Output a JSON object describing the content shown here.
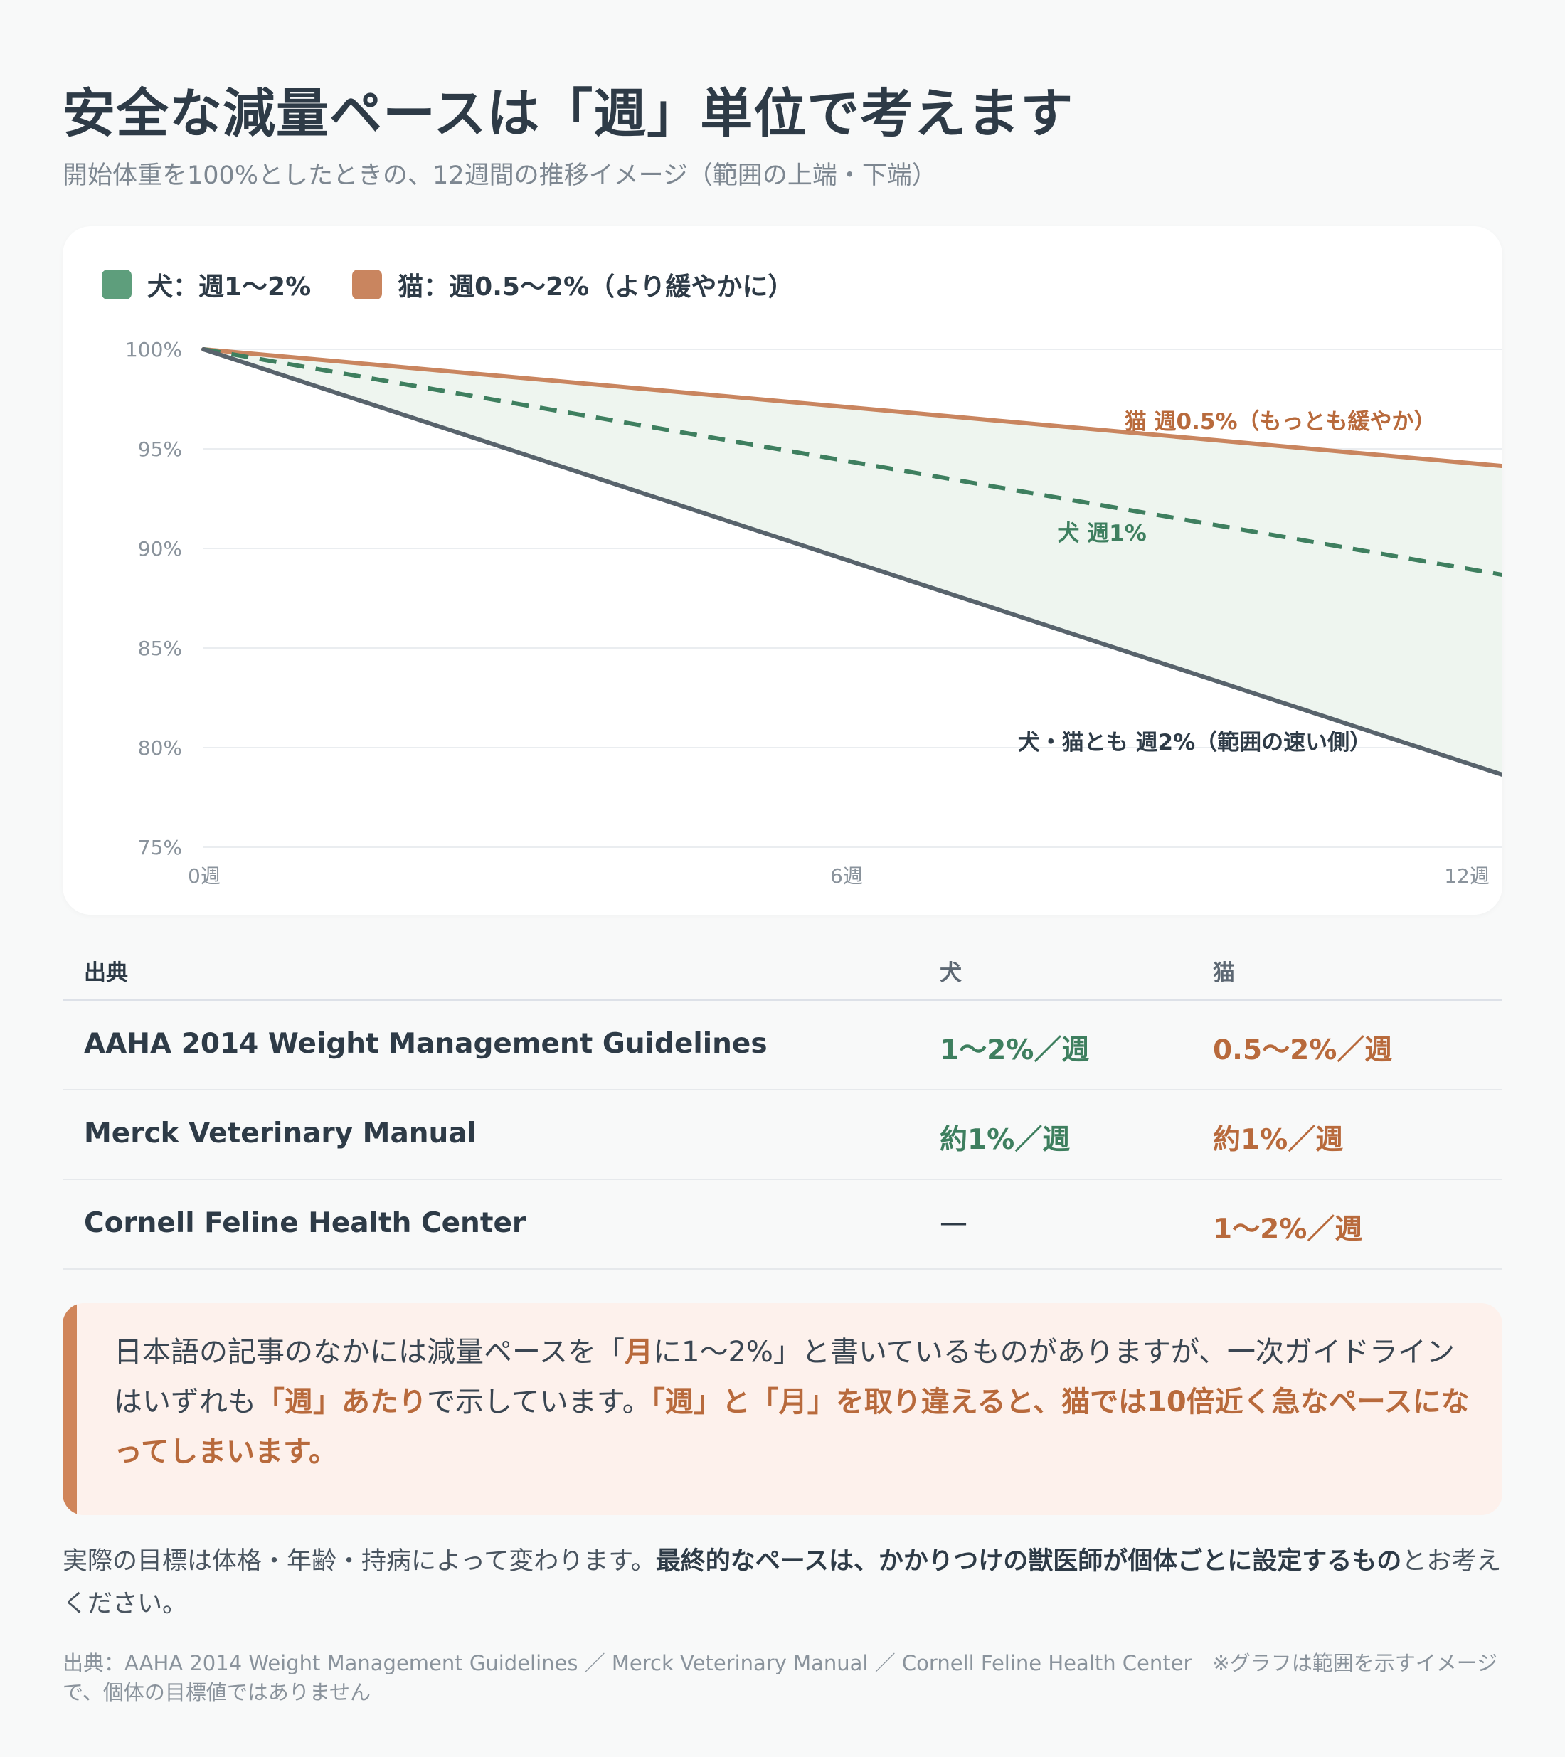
{
  "title": "安全な減量ペースは「週」単位で考えます",
  "subtitle": "開始体重を100%としたときの、12週間の推移イメージ（範囲の上端・下端）",
  "colors": {
    "dog": "#5e9e7c",
    "dog_text": "#3e7f5f",
    "cat": "#c9855f",
    "cat_text": "#b86a3c",
    "fast": "#58636c",
    "band_fill": "#eef5ef",
    "grid": "#eaedf0"
  },
  "chart_data": {
    "type": "line",
    "legend": [
      {
        "label": "犬：週1〜2%",
        "color": "#5e9e7c"
      },
      {
        "label": "猫：週0.5〜2%（より緩やかに）",
        "color": "#c9855f"
      }
    ],
    "x_ticks": [
      {
        "value": 0,
        "label": "0週"
      },
      {
        "value": 6,
        "label": "6週"
      },
      {
        "value": 12,
        "label": "12週"
      }
    ],
    "y_ticks": [
      {
        "value": 100,
        "label": "100%"
      },
      {
        "value": 95,
        "label": "95%"
      },
      {
        "value": 90,
        "label": "90%"
      },
      {
        "value": 85,
        "label": "85%"
      },
      {
        "value": 80,
        "label": "80%"
      },
      {
        "value": 75,
        "label": "75%"
      }
    ],
    "xlim": [
      0,
      12.2
    ],
    "ylim": [
      75,
      100
    ],
    "grid": true,
    "series": [
      {
        "label": "猫 週0.5%（もっとも緩やか）",
        "x": [
          0,
          12.2
        ],
        "y": [
          100,
          94.1
        ],
        "style": "solid",
        "color": "#c9855f",
        "label_color": "#b86a3c",
        "label_at": [
          11.5,
          96.0
        ]
      },
      {
        "label": "犬 週1%",
        "x": [
          0,
          12.2
        ],
        "y": [
          100,
          88.6
        ],
        "style": "dashed",
        "color": "#3e7f5f",
        "label_color": "#3e7f5f",
        "label_at": [
          8.8,
          90.4
        ]
      },
      {
        "label": "犬・猫とも 週2%（範囲の速い側）",
        "x": [
          0,
          12.2
        ],
        "y": [
          100,
          78.5
        ],
        "style": "solid",
        "color": "#58636c",
        "label_color": "#2e3b47",
        "label_at": [
          10.9,
          79.9
        ]
      }
    ]
  },
  "table": {
    "headers": [
      "出典",
      "犬",
      "猫"
    ],
    "rows": [
      [
        "AAHA 2014 Weight Management Guidelines",
        "1〜2%／週",
        "0.5〜2%／週"
      ],
      [
        "Merck Veterinary Manual",
        "約1%／週",
        "約1%／週"
      ],
      [
        "Cornell Feline Health Center",
        "—",
        "1〜2%／週"
      ]
    ]
  },
  "callout": {
    "part1": "日本語の記事のなかには減量ペースを「",
    "part2": "月",
    "part3": "に1〜2%」と書いているものがありますが、一次ガイドラインはいずれも",
    "part4": "「週」あたり",
    "part5": "で示しています。",
    "part6": "「週」と「月」を取り違えると、猫では10倍近く急なペースになってしまいます。"
  },
  "note": {
    "part1": "実際の目標は体格・年齢・持病によって変わります。",
    "part2": "最終的なペースは、かかりつけの獣医師が個体ごとに設定するもの",
    "part3": "とお考えください。"
  },
  "source": "出典：AAHA 2014 Weight Management Guidelines ／ Merck Veterinary Manual ／ Cornell Feline Health Center　※グラフは範囲を示すイメージで、個体の目標値ではありません"
}
